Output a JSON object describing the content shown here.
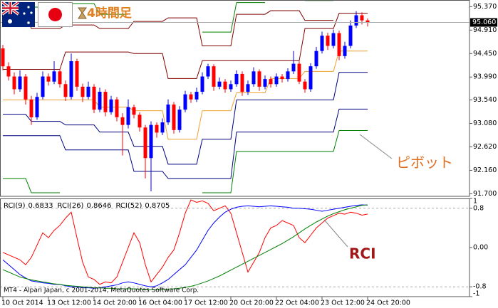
{
  "chart_data": [
    {
      "type": "candlestick",
      "title": "4時間足",
      "annotation": "ピボット",
      "categories": [
        "10 Oct 2014",
        null,
        null,
        null,
        null,
        null,
        null,
        null,
        "13 Oct 12:00",
        null,
        null,
        null,
        null,
        null,
        null,
        null,
        "14 Oct 20:00",
        null,
        null,
        null,
        null,
        null,
        null,
        null,
        "16 Oct 04:00",
        null,
        null,
        null,
        null,
        null,
        null,
        null,
        "17 Oct 12:00",
        null,
        null,
        null,
        null,
        null,
        null,
        null,
        "20 Oct 20:00",
        null,
        null,
        null,
        null,
        null,
        null,
        null,
        "22 Oct 04:00",
        null,
        null,
        null,
        null,
        null,
        null,
        null,
        "23 Oct 12:00",
        null,
        null,
        null,
        null,
        null,
        null,
        null,
        "24 Oct 20:00"
      ],
      "open": [
        94.55,
        94.2,
        94.0,
        93.75,
        94.0,
        93.55,
        93.2,
        93.6,
        94.0,
        93.9,
        94.1,
        93.85,
        93.6,
        94.3,
        93.8,
        93.6,
        93.8,
        93.35,
        93.7,
        93.3,
        93.55,
        93.2,
        93.05,
        93.4,
        93.25,
        93.0,
        92.4,
        93.05,
        92.9,
        93.1,
        93.45,
        92.95,
        93.35,
        93.65,
        93.55,
        93.7,
        94.0,
        94.2,
        93.8,
        93.9,
        93.75,
        93.85,
        94.05,
        93.7,
        93.85,
        94.1,
        93.8,
        93.95,
        93.85,
        94.0,
        93.95,
        94.1,
        94.25,
        93.9,
        93.75,
        94.2,
        94.5,
        94.8,
        94.6,
        94.85,
        94.4,
        94.6,
        95.0,
        95.2,
        95.1
      ],
      "high": [
        94.62,
        94.28,
        94.08,
        94.12,
        94.05,
        93.62,
        93.68,
        94.1,
        94.06,
        94.3,
        94.15,
        93.92,
        94.45,
        94.35,
        93.86,
        93.9,
        93.85,
        93.78,
        93.75,
        93.62,
        93.6,
        93.28,
        93.55,
        93.45,
        93.3,
        93.05,
        93.12,
        93.1,
        93.18,
        93.55,
        93.5,
        93.42,
        93.72,
        93.7,
        93.78,
        94.08,
        94.25,
        94.24,
        93.98,
        93.95,
        93.92,
        94.12,
        94.1,
        93.92,
        94.18,
        94.14,
        94.02,
        94.0,
        94.06,
        94.05,
        94.16,
        94.5,
        94.3,
        93.95,
        94.26,
        94.58,
        94.88,
        94.86,
        94.92,
        94.9,
        94.68,
        95.1,
        95.28,
        95.26,
        95.14
      ],
      "low": [
        94.12,
        93.92,
        93.65,
        93.7,
        93.45,
        93.05,
        93.15,
        93.55,
        93.82,
        93.85,
        93.78,
        93.52,
        93.55,
        93.72,
        93.5,
        93.55,
        93.28,
        93.3,
        93.22,
        93.25,
        93.12,
        92.45,
        92.98,
        93.18,
        92.92,
        92.0,
        91.75,
        92.8,
        92.85,
        93.05,
        92.88,
        92.9,
        93.3,
        93.48,
        93.5,
        93.65,
        93.95,
        93.72,
        93.75,
        93.68,
        93.7,
        93.8,
        93.62,
        93.64,
        93.8,
        93.72,
        93.75,
        93.78,
        93.8,
        93.88,
        93.9,
        94.05,
        93.85,
        93.68,
        93.7,
        94.15,
        94.45,
        94.52,
        94.55,
        94.32,
        94.35,
        94.55,
        94.95,
        95.02,
        94.98
      ],
      "close": [
        94.2,
        94.0,
        93.75,
        94.0,
        93.55,
        93.2,
        93.6,
        94.0,
        93.9,
        94.1,
        93.85,
        93.6,
        94.3,
        93.8,
        93.6,
        93.8,
        93.35,
        93.7,
        93.3,
        93.55,
        93.2,
        93.05,
        93.4,
        93.25,
        93.0,
        92.4,
        93.05,
        92.9,
        93.1,
        93.45,
        92.95,
        93.35,
        93.65,
        93.55,
        93.7,
        94.0,
        94.2,
        93.8,
        93.9,
        93.75,
        93.85,
        94.05,
        93.7,
        93.85,
        94.1,
        93.8,
        93.95,
        93.85,
        94.0,
        93.95,
        94.1,
        94.25,
        93.9,
        93.75,
        94.2,
        94.5,
        94.8,
        94.6,
        94.85,
        94.4,
        94.6,
        95.0,
        95.2,
        95.1,
        95.06
      ],
      "up_color": "#0000ff",
      "down_color": "#ff0000",
      "series": [
        {
          "color": "#008000",
          "values": [
            null,
            null,
            null,
            null,
            null,
            95.36,
            95.36,
            95.36,
            95.36,
            95.36,
            95.36,
            95.43,
            95.43,
            95.43,
            95.43,
            95.43,
            95.43,
            95.22,
            95.22,
            95.22,
            95.22,
            95.22,
            95.22,
            null,
            null,
            null,
            null,
            null,
            null,
            null,
            null,
            null,
            null,
            null,
            null,
            94.87,
            94.87,
            94.87,
            94.87,
            94.87,
            94.87,
            95.45,
            95.45,
            95.45,
            95.45,
            95.45,
            95.45,
            null,
            null,
            null,
            null,
            null,
            null,
            95.49,
            95.49,
            95.49,
            95.49,
            95.49,
            95.49,
            null,
            null,
            null,
            null,
            null,
            null
          ]
        },
        {
          "color": "#800000",
          "values": [
            95.29,
            95.29,
            95.29,
            95.29,
            95.29,
            94.94,
            94.94,
            94.94,
            94.94,
            94.94,
            94.94,
            95.01,
            95.01,
            95.01,
            95.01,
            95.01,
            95.01,
            94.94,
            94.94,
            94.94,
            94.94,
            94.94,
            94.94,
            95.08,
            95.08,
            95.08,
            95.08,
            95.08,
            95.08,
            95.15,
            95.15,
            95.15,
            95.15,
            95.15,
            95.15,
            94.6,
            94.6,
            94.6,
            94.6,
            94.6,
            94.6,
            95.22,
            95.22,
            95.22,
            95.22,
            95.22,
            95.22,
            95.29,
            95.29,
            95.29,
            95.29,
            95.29,
            95.29,
            95.1,
            95.1,
            95.1,
            95.1,
            95.1,
            95.1,
            null,
            null,
            null,
            null,
            null,
            null
          ]
        },
        {
          "color": "#800000",
          "values": [
            94.14,
            94.14,
            94.14,
            94.14,
            94.14,
            94.14,
            94.14,
            94.14,
            94.14,
            94.14,
            94.14,
            94.48,
            94.48,
            94.48,
            94.48,
            94.48,
            94.48,
            94.48,
            94.48,
            94.48,
            94.48,
            94.48,
            94.48,
            94.45,
            94.45,
            94.45,
            94.45,
            94.45,
            94.45,
            93.96,
            93.96,
            93.96,
            93.96,
            93.96,
            93.96,
            94.31,
            94.31,
            94.31,
            94.31,
            94.31,
            94.31,
            94.31,
            94.31,
            94.31,
            94.31,
            94.31,
            94.31,
            94.31,
            94.31,
            94.31,
            94.31,
            94.31,
            94.31,
            94.94,
            94.94,
            94.94,
            94.94,
            94.94,
            94.94,
            95.24,
            95.24,
            95.24,
            95.24,
            95.24,
            95.24
          ]
        },
        {
          "color": "#f0a030",
          "values": [
            93.54,
            93.54,
            93.54,
            93.54,
            93.54,
            93.54,
            93.54,
            93.54,
            93.54,
            93.54,
            93.54,
            93.54,
            93.54,
            93.54,
            93.54,
            93.54,
            93.54,
            93.4,
            93.4,
            93.4,
            93.4,
            93.4,
            93.4,
            93.33,
            93.33,
            93.33,
            93.33,
            93.33,
            93.33,
            92.77,
            92.77,
            92.77,
            92.77,
            92.77,
            92.77,
            93.33,
            93.33,
            93.33,
            93.33,
            93.33,
            93.33,
            93.68,
            93.68,
            93.68,
            93.68,
            93.68,
            93.68,
            93.96,
            93.96,
            93.96,
            93.96,
            93.96,
            93.96,
            94.1,
            94.1,
            94.1,
            94.1,
            94.1,
            94.1,
            94.5,
            94.5,
            94.5,
            94.5,
            94.5,
            94.5
          ]
        },
        {
          "color": "#000080",
          "values": [
            93.26,
            93.26,
            93.26,
            93.26,
            93.26,
            93.12,
            93.12,
            93.12,
            93.12,
            93.12,
            93.12,
            93.05,
            93.05,
            93.05,
            93.05,
            93.05,
            93.05,
            92.91,
            92.91,
            92.91,
            92.91,
            92.91,
            92.91,
            92.63,
            92.63,
            92.63,
            92.63,
            92.63,
            92.63,
            92.28,
            92.28,
            92.28,
            92.28,
            92.28,
            92.28,
            92.77,
            92.77,
            92.77,
            92.77,
            92.77,
            92.77,
            93.54,
            93.54,
            93.54,
            93.54,
            93.54,
            93.54,
            93.54,
            93.54,
            93.54,
            93.54,
            93.54,
            93.54,
            93.54,
            93.54,
            93.54,
            93.54,
            93.54,
            93.54,
            94.08,
            94.08,
            94.08,
            94.08,
            94.08,
            94.08
          ]
        },
        {
          "color": "#000080",
          "values": [
            92.84,
            92.84,
            92.84,
            92.84,
            92.84,
            92.84,
            92.84,
            92.84,
            92.84,
            92.84,
            92.84,
            92.56,
            92.56,
            92.56,
            92.56,
            92.56,
            92.56,
            92.56,
            92.56,
            92.56,
            92.56,
            92.56,
            92.56,
            92.14,
            92.14,
            92.14,
            92.14,
            92.14,
            92.14,
            92.0,
            92.0,
            92.0,
            92.0,
            92.0,
            92.0,
            92.0,
            92.0,
            92.0,
            92.0,
            92.0,
            92.0,
            92.91,
            92.91,
            92.91,
            92.91,
            92.91,
            92.91,
            92.91,
            92.91,
            92.91,
            92.91,
            92.91,
            92.91,
            92.91,
            92.91,
            92.91,
            92.91,
            92.91,
            92.91,
            93.36,
            93.36,
            93.36,
            93.36,
            93.36,
            93.36
          ]
        },
        {
          "color": "#008000",
          "values": [
            92.0,
            92.0,
            92.0,
            92.0,
            92.0,
            91.72,
            91.72,
            91.72,
            91.72,
            91.72,
            91.72,
            null,
            null,
            null,
            null,
            null,
            null,
            null,
            null,
            null,
            null,
            null,
            null,
            null,
            null,
            null,
            null,
            null,
            null,
            null,
            null,
            null,
            null,
            null,
            null,
            91.72,
            91.72,
            91.72,
            91.72,
            91.72,
            91.72,
            92.53,
            92.53,
            92.53,
            92.53,
            92.53,
            92.53,
            92.53,
            92.53,
            92.53,
            92.53,
            92.53,
            92.53,
            92.53,
            92.53,
            92.53,
            92.53,
            92.53,
            92.53,
            92.94,
            92.94,
            92.94,
            92.94,
            92.94,
            92.94
          ]
        }
      ],
      "ylim": [
        91.65,
        95.5
      ],
      "yticks": [
        {
          "value": 95.37,
          "label": "95.370"
        },
        {
          "value": 94.91,
          "label": "94.910"
        },
        {
          "value": 94.45,
          "label": "94.450"
        },
        {
          "value": 93.99,
          "label": "93.990"
        },
        {
          "value": 93.54,
          "label": "93.540"
        },
        {
          "value": 93.08,
          "label": "93.080"
        },
        {
          "value": 92.62,
          "label": "92.620"
        },
        {
          "value": 92.16,
          "label": "92.160"
        },
        {
          "value": 91.7,
          "label": "91.700"
        }
      ],
      "current_price": {
        "value": 95.06,
        "label": "95.060"
      }
    },
    {
      "type": "line",
      "annotation": "RCI",
      "footer": "MT4 - Alpari Japan, c 2001-2014, MetaQuotes Software Corp.",
      "series": [
        {
          "name": "RCI(9)",
          "color": "#ff0000",
          "values": [
            -0.1,
            -0.15,
            -0.2,
            -0.25,
            -0.35,
            -0.2,
            0.05,
            0.3,
            0.2,
            0.35,
            0.45,
            0.6,
            0.72,
            0.2,
            -0.3,
            -0.6,
            -0.65,
            -0.75,
            -0.7,
            -0.72,
            -0.6,
            -0.3,
            0.0,
            0.3,
            0.1,
            -0.35,
            -0.7,
            -0.55,
            -0.4,
            -0.2,
            -0.05,
            0.3,
            0.7,
            0.97,
            0.92,
            0.95,
            0.9,
            0.75,
            0.8,
            0.85,
            0.7,
            0.3,
            -0.1,
            -0.5,
            -0.3,
            -0.1,
            0.2,
            0.4,
            0.45,
            0.55,
            0.5,
            0.45,
            0.2,
            0.1,
            0.25,
            0.4,
            0.5,
            0.6,
            0.65,
            0.7,
            0.68,
            0.72,
            0.7,
            0.66,
            0.6833
          ]
        },
        {
          "name": "RCI(26)",
          "color": "#0000ff",
          "values": [
            -0.25,
            -0.35,
            -0.45,
            -0.55,
            -0.62,
            -0.68,
            -0.7,
            -0.72,
            -0.73,
            -0.75,
            -0.75,
            -0.78,
            -0.8,
            -0.8,
            -0.82,
            -0.82,
            -0.83,
            -0.82,
            -0.8,
            -0.78,
            -0.76,
            -0.72,
            -0.7,
            -0.72,
            -0.75,
            -0.78,
            -0.8,
            -0.78,
            -0.72,
            -0.65,
            -0.55,
            -0.45,
            -0.35,
            -0.2,
            -0.05,
            0.15,
            0.35,
            0.5,
            0.62,
            0.72,
            0.78,
            0.82,
            0.84,
            0.85,
            0.84,
            0.83,
            0.84,
            0.85,
            0.84,
            0.83,
            0.82,
            0.8,
            0.8,
            0.79,
            0.78,
            0.76,
            0.74,
            0.76,
            0.78,
            0.8,
            0.82,
            0.84,
            0.86,
            0.87,
            0.8646
          ]
        },
        {
          "name": "RCI(52)",
          "color": "#008000",
          "values": [
            -0.45,
            -0.5,
            -0.55,
            -0.6,
            -0.63,
            -0.66,
            -0.68,
            -0.7,
            -0.72,
            -0.74,
            -0.75,
            -0.77,
            -0.78,
            -0.79,
            -0.8,
            -0.81,
            -0.82,
            -0.82,
            -0.83,
            -0.83,
            -0.84,
            -0.84,
            -0.84,
            -0.84,
            -0.85,
            -0.85,
            -0.86,
            -0.86,
            -0.86,
            -0.85,
            -0.84,
            -0.83,
            -0.81,
            -0.79,
            -0.76,
            -0.72,
            -0.68,
            -0.63,
            -0.58,
            -0.52,
            -0.46,
            -0.4,
            -0.34,
            -0.28,
            -0.22,
            -0.16,
            -0.1,
            -0.04,
            0.02,
            0.08,
            0.15,
            0.22,
            0.3,
            0.38,
            0.45,
            0.52,
            0.58,
            0.64,
            0.69,
            0.73,
            0.77,
            0.8,
            0.83,
            0.86,
            0.8705
          ]
        }
      ],
      "ylim": [
        -1,
        1
      ],
      "yticks": [
        1,
        0.8,
        {
          "value": 0,
          "label": "0.00"
        },
        -0.8,
        -1
      ],
      "levels": [
        0.8,
        -0.8
      ]
    }
  ]
}
